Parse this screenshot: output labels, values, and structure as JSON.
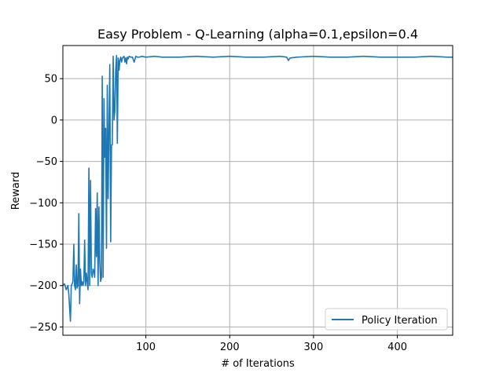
{
  "chart_data": {
    "type": "line",
    "title": "Easy Problem - Q-Learning (alpha=0.1,epsilon=0.4",
    "xlabel": "# of Iterations",
    "ylabel": "Reward",
    "xlim": [
      1,
      466
    ],
    "ylim": [
      -260,
      90
    ],
    "xticks": [
      100,
      200,
      300,
      400
    ],
    "yticks": [
      -250,
      -200,
      -150,
      -100,
      -50,
      0,
      50
    ],
    "grid": true,
    "legend": {
      "position": "lower right"
    },
    "series": [
      {
        "name": "Policy Iteration",
        "color": "#1f77b4",
        "x": [
          1,
          3,
          5,
          7,
          8,
          10,
          11,
          12,
          13,
          14,
          15,
          16,
          17,
          18,
          19,
          20,
          21,
          22,
          23,
          24,
          25,
          26,
          27,
          28,
          29,
          30,
          31,
          32,
          33,
          34,
          35,
          36,
          37,
          38,
          39,
          40,
          41,
          42,
          43,
          44,
          45,
          46,
          47,
          48,
          49,
          50,
          51,
          52,
          53,
          54,
          55,
          56,
          57,
          58,
          59,
          60,
          61,
          62,
          63,
          64,
          65,
          66,
          67,
          68,
          69,
          70,
          71,
          72,
          73,
          74,
          75,
          76,
          77,
          78,
          79,
          80,
          82,
          84,
          86,
          88,
          90,
          92,
          95,
          100,
          110,
          120,
          140,
          160,
          180,
          200,
          220,
          240,
          260,
          268,
          270,
          272,
          280,
          300,
          320,
          340,
          360,
          380,
          400,
          420,
          440,
          460,
          466
        ],
        "y": [
          -200,
          -198,
          -205,
          -200,
          -210,
          -243,
          -200,
          -198,
          -195,
          -150,
          -200,
          -205,
          -175,
          -203,
          -200,
          -113,
          -222,
          -180,
          -200,
          -195,
          -200,
          -195,
          -145,
          -200,
          -185,
          -195,
          -205,
          -58,
          -200,
          -73,
          -185,
          -190,
          -180,
          -183,
          -190,
          -107,
          -165,
          -88,
          -200,
          -105,
          -170,
          -195,
          -190,
          53,
          -190,
          26,
          -45,
          -10,
          -155,
          42,
          -95,
          -5,
          67,
          -147,
          -30,
          -30,
          77,
          0,
          10,
          60,
          78,
          -28,
          75,
          60,
          72,
          76,
          70,
          75,
          76,
          77,
          70,
          75,
          68,
          76,
          74,
          77,
          76,
          76,
          70,
          77,
          76,
          76,
          77,
          76,
          77,
          76,
          76,
          77,
          76,
          77,
          76,
          76,
          77,
          76,
          72,
          75,
          76,
          77,
          76,
          76,
          77,
          76,
          76,
          76,
          77,
          76,
          76
        ]
      }
    ]
  }
}
